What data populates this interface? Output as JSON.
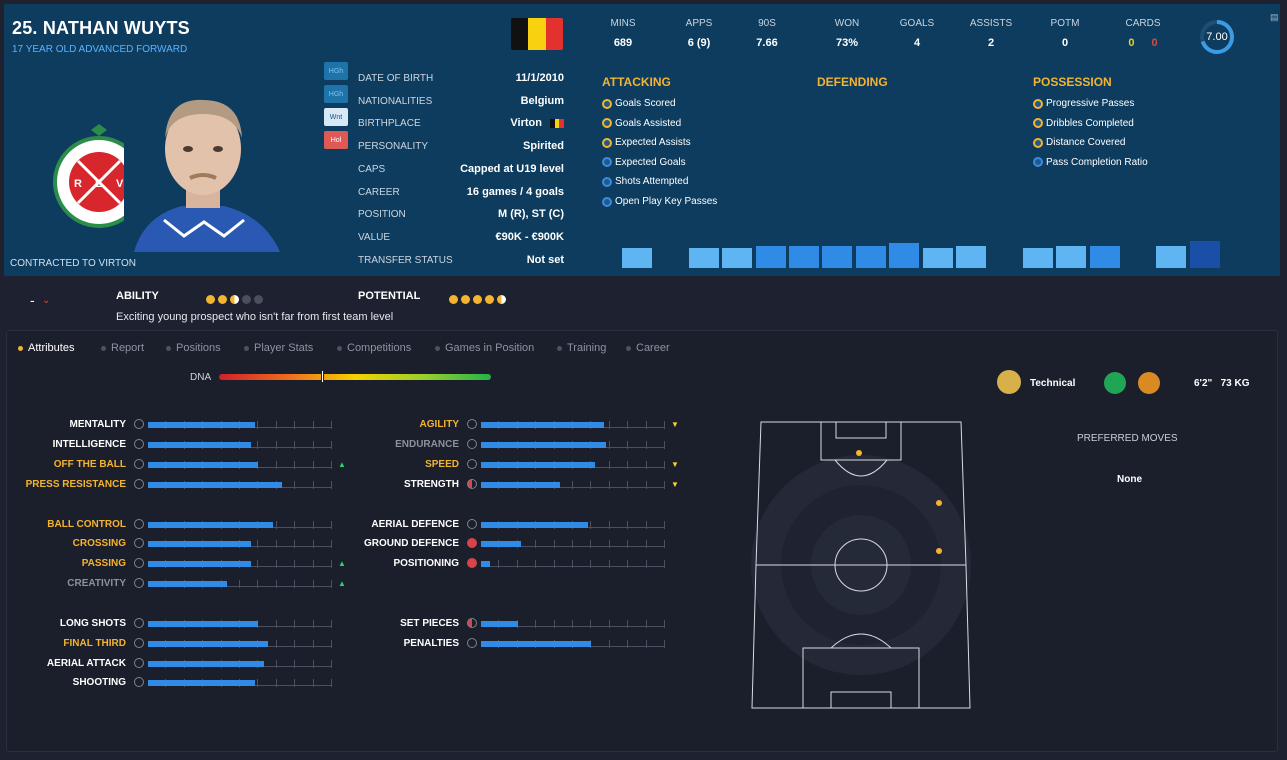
{
  "header": {
    "name": "25. NATHAN WUYTS",
    "subtitle": "17 YEAR OLD  ADVANCED FORWARD",
    "contract": "CONTRACTED TO VIRTON",
    "crest_text": "ROYAL EXCELSIOR VIRTON",
    "crest_since": "DEPUIS 1922",
    "crest_letters": [
      "R",
      "E",
      "V"
    ],
    "flag_colors": [
      "#111111",
      "#f8d20e",
      "#e3312d"
    ],
    "help_buttons": [
      "HGh",
      "HGh",
      "Wnt",
      "Hol"
    ]
  },
  "info": [
    {
      "label": "DATE OF BIRTH",
      "value": "11/1/2010"
    },
    {
      "label": "NATIONALITIES",
      "value": "Belgium"
    },
    {
      "label": "BIRTHPLACE",
      "value": "Virton"
    },
    {
      "label": "PERSONALITY",
      "value": "Spirited"
    },
    {
      "label": "CAPS",
      "value": "Capped at U19 level"
    },
    {
      "label": "CAREER",
      "value": "16 games /    4 goals"
    },
    {
      "label": "POSITION",
      "value": "M (R), ST (C)"
    },
    {
      "label": "VALUE",
      "value": "€90K - €900K"
    },
    {
      "label": "TRANSFER STATUS",
      "value": "Not set"
    }
  ],
  "stats": [
    {
      "label": "MINS",
      "value": "689"
    },
    {
      "label": "APPS",
      "value": "6 (9)"
    },
    {
      "label": "90S",
      "value": "7.66"
    },
    {
      "label": "WON",
      "value": "73%"
    },
    {
      "label": "GOALS",
      "value": "4"
    },
    {
      "label": "ASSISTS",
      "value": "2"
    },
    {
      "label": "POTM",
      "value": "0"
    },
    {
      "label": "CARDS",
      "value": "",
      "yellow": "0",
      "red": "0"
    }
  ],
  "rating": {
    "value": "7.00",
    "fraction": 0.7
  },
  "categories": {
    "attacking": {
      "title": "ATTACKING",
      "items": [
        {
          "label": "Goals Scored",
          "kind": "gold"
        },
        {
          "label": "Goals Assisted",
          "kind": "gold"
        },
        {
          "label": "Expected Assists",
          "kind": "gold"
        },
        {
          "label": "Expected Goals",
          "kind": "blue"
        },
        {
          "label": "Shots Attempted",
          "kind": "blue"
        },
        {
          "label": "Open Play Key Passes",
          "kind": "blue"
        }
      ]
    },
    "defending": {
      "title": "DEFENDING",
      "items": []
    },
    "possession": {
      "title": "POSSESSION",
      "items": [
        {
          "label": "Progressive Passes",
          "kind": "gold"
        },
        {
          "label": "Dribbles Completed",
          "kind": "gold"
        },
        {
          "label": "Distance Covered",
          "kind": "gold"
        },
        {
          "label": "Pass Completion Ratio",
          "kind": "blue"
        }
      ]
    }
  },
  "perf_bars": [
    {
      "level": 0.8,
      "color": "#5fb4f2"
    },
    {
      "level": 0,
      "color": "#5fb4f2"
    },
    {
      "level": 0.8,
      "color": "#5fb4f2"
    },
    {
      "level": 0.8,
      "color": "#5fb4f2"
    },
    {
      "level": 0.9,
      "color": "#2f8be6"
    },
    {
      "level": 0.9,
      "color": "#2f8be6"
    },
    {
      "level": 0.9,
      "color": "#2f8be6"
    },
    {
      "level": 0.9,
      "color": "#2f8be6"
    },
    {
      "level": 1.0,
      "color": "#2f8be6"
    },
    {
      "level": 0.8,
      "color": "#5fb4f2"
    },
    {
      "level": 0.9,
      "color": "#5fb4f2"
    },
    {
      "level": 0,
      "color": "#5fb4f2"
    },
    {
      "level": 0.8,
      "color": "#5fb4f2"
    },
    {
      "level": 0.9,
      "color": "#5fb4f2"
    },
    {
      "level": 0.9,
      "color": "#2f8be6"
    },
    {
      "level": 0,
      "color": "#5fb4f2"
    },
    {
      "level": 0.9,
      "color": "#5fb4f2"
    },
    {
      "level": 1.1,
      "color": "#1a4fa8"
    }
  ],
  "ability": {
    "label": "ABILITY",
    "stars": 2.5
  },
  "potential": {
    "label": "POTENTIAL",
    "stars": 4.5
  },
  "trend": "-",
  "description": "Exciting young prospect who isn't far from first team level",
  "tabs": [
    "Attributes",
    "Report",
    "Positions",
    "Player Stats",
    "Competitions",
    "Games in Position",
    "Training",
    "Career"
  ],
  "dna": {
    "label": "DNA",
    "level": 0.38
  },
  "attributes_left": [
    {
      "name": "MENTALITY",
      "value": 0.58,
      "color": "#fff",
      "arrow": ""
    },
    {
      "name": "INTELLIGENCE",
      "value": 0.56,
      "color": "#fff",
      "arrow": ""
    },
    {
      "name": "OFF THE BALL",
      "value": 0.6,
      "color": "#f3b430",
      "arrow": "up"
    },
    {
      "name": "PRESS RESISTANCE",
      "value": 0.73,
      "color": "#f3b430",
      "arrow": ""
    },
    {
      "name": "BALL CONTROL",
      "value": 0.68,
      "color": "#f3b430",
      "arrow": ""
    },
    {
      "name": "CROSSING",
      "value": 0.56,
      "color": "#f3b430",
      "arrow": ""
    },
    {
      "name": "PASSING",
      "value": 0.56,
      "color": "#f3b430",
      "arrow": "up"
    },
    {
      "name": "CREATIVITY",
      "value": 0.43,
      "color": "#8b919c",
      "arrow": "up"
    },
    {
      "name": "LONG SHOTS",
      "value": 0.6,
      "color": "#fff",
      "arrow": ""
    },
    {
      "name": "FINAL THIRD",
      "value": 0.65,
      "color": "#f3b430",
      "arrow": ""
    },
    {
      "name": "AERIAL ATTACK",
      "value": 0.63,
      "color": "#fff",
      "arrow": ""
    },
    {
      "name": "SHOOTING",
      "value": 0.58,
      "color": "#fff",
      "arrow": ""
    }
  ],
  "attributes_right": [
    {
      "name": "AGILITY",
      "value": 0.67,
      "color": "#f3b430",
      "arrow": "down",
      "icon": ""
    },
    {
      "name": "ENDURANCE",
      "value": 0.68,
      "color": "#8b919c",
      "arrow": "",
      "icon": ""
    },
    {
      "name": "SPEED",
      "value": 0.62,
      "color": "#f3b430",
      "arrow": "down",
      "icon": ""
    },
    {
      "name": "STRENGTH",
      "value": 0.43,
      "color": "#fff",
      "arrow": "down",
      "icon": "half"
    },
    {
      "name": "AERIAL DEFENCE",
      "value": 0.58,
      "color": "#fff",
      "arrow": "",
      "icon": ""
    },
    {
      "name": "GROUND DEFENCE",
      "value": 0.22,
      "color": "#fff",
      "arrow": "",
      "icon": "red"
    },
    {
      "name": "POSITIONING",
      "value": 0.05,
      "color": "#fff",
      "arrow": "",
      "icon": "red"
    },
    {
      "name": "SET PIECES",
      "value": 0.2,
      "color": "#fff",
      "arrow": "",
      "icon": "half"
    },
    {
      "name": "PENALTIES",
      "value": 0.6,
      "color": "#fff",
      "arrow": "",
      "icon": ""
    }
  ],
  "side": {
    "tech_label": "Technical",
    "height": "6'2\"",
    "weight": "73 KG",
    "preferred_moves_title": "PREFERRED MOVES",
    "preferred_moves_value": "None"
  },
  "colors": {
    "accent": "#f3b430",
    "bar": "#2f8be6",
    "header_bg": "#0d3c5e"
  }
}
